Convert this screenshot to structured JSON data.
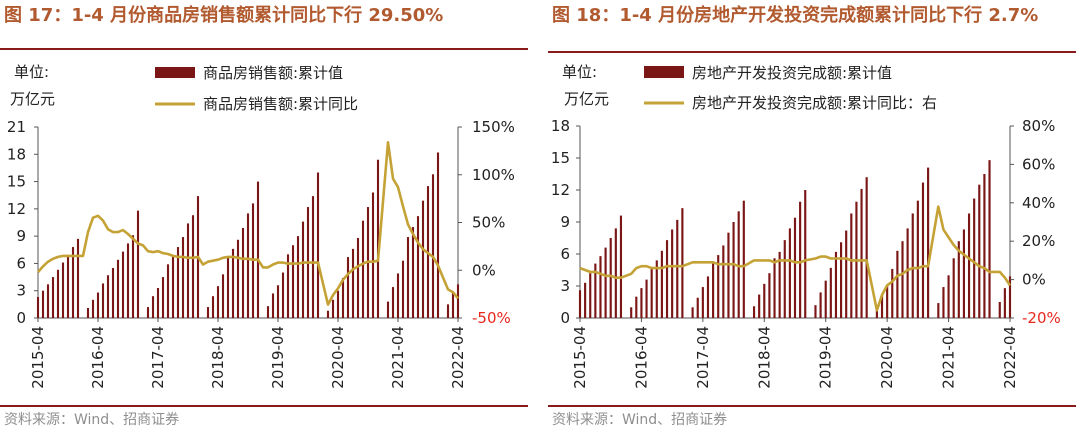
{
  "charts": [
    {
      "title": "图 17：1-4 月份商品房销售额累计同比下行 29.50%",
      "unit_line1": "单位:",
      "unit_line2": "万亿元",
      "source": "资料来源：Wind、招商证券",
      "colors": {
        "bar": "#7b1616",
        "line": "#c5a235",
        "title": "#b25a2f",
        "negative_tick": "#e8281f"
      },
      "chart_data": {
        "type": "bar+line",
        "x_tick_labels": [
          "2015-04",
          "2016-04",
          "2017-04",
          "2018-04",
          "2019-04",
          "2020-04",
          "2021-04",
          "2022-04"
        ],
        "months": [
          "2015-04",
          "2015-05",
          "2015-06",
          "2015-07",
          "2015-08",
          "2015-09",
          "2015-10",
          "2015-11",
          "2015-12",
          "2016-01",
          "2016-02",
          "2016-03",
          "2016-04",
          "2016-05",
          "2016-06",
          "2016-07",
          "2016-08",
          "2016-09",
          "2016-10",
          "2016-11",
          "2016-12",
          "2017-01",
          "2017-02",
          "2017-03",
          "2017-04",
          "2017-05",
          "2017-06",
          "2017-07",
          "2017-08",
          "2017-09",
          "2017-10",
          "2017-11",
          "2017-12",
          "2018-01",
          "2018-02",
          "2018-03",
          "2018-04",
          "2018-05",
          "2018-06",
          "2018-07",
          "2018-08",
          "2018-09",
          "2018-10",
          "2018-11",
          "2018-12",
          "2019-01",
          "2019-02",
          "2019-03",
          "2019-04",
          "2019-05",
          "2019-06",
          "2019-07",
          "2019-08",
          "2019-09",
          "2019-10",
          "2019-11",
          "2019-12",
          "2020-01",
          "2020-02",
          "2020-03",
          "2020-04",
          "2020-05",
          "2020-06",
          "2020-07",
          "2020-08",
          "2020-09",
          "2020-10",
          "2020-11",
          "2020-12",
          "2021-01",
          "2021-02",
          "2021-03",
          "2021-04",
          "2021-05",
          "2021-06",
          "2021-07",
          "2021-08",
          "2021-09",
          "2021-10",
          "2021-11",
          "2021-12",
          "2022-01",
          "2022-02",
          "2022-03",
          "2022-04"
        ],
        "series": [
          {
            "name": "商品房销售额:累计值",
            "type": "bar",
            "axis": "left",
            "values": [
              2.3,
              3.0,
              3.7,
              4.5,
              5.3,
              6.1,
              6.9,
              7.8,
              8.7,
              null,
              1.1,
              2.0,
              2.8,
              3.8,
              4.7,
              5.5,
              6.4,
              7.3,
              8.2,
              9.1,
              11.8,
              null,
              1.2,
              2.4,
              3.3,
              4.5,
              5.9,
              6.7,
              7.8,
              8.9,
              10.4,
              11.3,
              13.4,
              null,
              1.2,
              2.4,
              3.5,
              4.8,
              6.7,
              7.6,
              8.6,
              9.9,
              11.5,
              12.6,
              15.0,
              null,
              1.3,
              2.7,
              3.6,
              5.0,
              7.0,
              8.0,
              9.0,
              10.6,
              12.2,
              13.4,
              16.0,
              null,
              0.8,
              2.0,
              3.0,
              4.4,
              6.7,
              7.6,
              8.8,
              10.7,
              12.2,
              13.8,
              17.4,
              null,
              1.8,
              3.4,
              4.9,
              6.3,
              8.9,
              10.0,
              11.2,
              12.9,
              14.5,
              15.8,
              18.2,
              null,
              1.5,
              2.9,
              3.7
            ],
            "color": "#7b1616"
          },
          {
            "name": "商品房销售额:累计同比",
            "type": "line",
            "axis": "right",
            "values": [
              -2,
              4,
              9,
              12,
              14,
              15,
              15,
              15,
              15,
              15,
              40,
              55,
              57,
              52,
              43,
              40,
              40,
              42,
              38,
              33,
              28,
              26,
              20,
              19,
              20,
              18,
              17,
              15,
              14,
              14,
              13,
              13,
              14,
              6,
              9,
              10,
              11,
              13,
              14,
              14,
              13,
              12,
              12,
              11,
              11,
              3,
              3,
              6,
              8,
              8,
              7,
              7,
              7,
              8,
              8,
              8,
              8,
              null,
              -36,
              -26,
              -19,
              -10,
              -4,
              1,
              4,
              7,
              9,
              9,
              10,
              null,
              134,
              96,
              87,
              67,
              48,
              38,
              29,
              22,
              18,
              14,
              5,
              null,
              -20,
              -23,
              -29.5
            ]
          }
        ],
        "left_axis": {
          "range": [
            0,
            21
          ],
          "ticks": [
            "0",
            "3",
            "6",
            "9",
            "12",
            "15",
            "18",
            "21"
          ]
        },
        "right_axis": {
          "range": [
            -50,
            150
          ],
          "ticks": [
            "-50%",
            "0%",
            "50%",
            "100%",
            "150%"
          ],
          "negative_color": "#e8281f"
        }
      }
    },
    {
      "title": "图 18：1-4 月份房地产开发投资完成额累计同比下行 2.7%",
      "unit_line1": "单位:",
      "unit_line2": "万亿元",
      "source": "资料来源：Wind、招商证券",
      "colors": {
        "bar": "#7b1616",
        "line": "#c5a235",
        "title": "#b25a2f",
        "negative_tick": "#e8281f"
      },
      "chart_data": {
        "type": "bar+line",
        "x_tick_labels": [
          "2015-04",
          "2016-04",
          "2017-04",
          "2018-04",
          "2019-04",
          "2020-04",
          "2021-04",
          "2022-04"
        ],
        "months": [
          "2015-04",
          "2015-05",
          "2015-06",
          "2015-07",
          "2015-08",
          "2015-09",
          "2015-10",
          "2015-11",
          "2015-12",
          "2016-01",
          "2016-02",
          "2016-03",
          "2016-04",
          "2016-05",
          "2016-06",
          "2016-07",
          "2016-08",
          "2016-09",
          "2016-10",
          "2016-11",
          "2016-12",
          "2017-01",
          "2017-02",
          "2017-03",
          "2017-04",
          "2017-05",
          "2017-06",
          "2017-07",
          "2017-08",
          "2017-09",
          "2017-10",
          "2017-11",
          "2017-12",
          "2018-01",
          "2018-02",
          "2018-03",
          "2018-04",
          "2018-05",
          "2018-06",
          "2018-07",
          "2018-08",
          "2018-09",
          "2018-10",
          "2018-11",
          "2018-12",
          "2019-01",
          "2019-02",
          "2019-03",
          "2019-04",
          "2019-05",
          "2019-06",
          "2019-07",
          "2019-08",
          "2019-09",
          "2019-10",
          "2019-11",
          "2019-12",
          "2020-01",
          "2020-02",
          "2020-03",
          "2020-04",
          "2020-05",
          "2020-06",
          "2020-07",
          "2020-08",
          "2020-09",
          "2020-10",
          "2020-11",
          "2020-12",
          "2021-01",
          "2021-02",
          "2021-03",
          "2021-04",
          "2021-05",
          "2021-06",
          "2021-07",
          "2021-08",
          "2021-09",
          "2021-10",
          "2021-11",
          "2021-12",
          "2022-01",
          "2022-02",
          "2022-03",
          "2022-04"
        ],
        "series": [
          {
            "name": "房地产开发投资完成额:累计值",
            "type": "bar",
            "axis": "left",
            "values": [
              2.6,
              3.3,
              4.2,
              5.1,
              5.8,
              6.6,
              7.5,
              8.4,
              9.6,
              null,
              1.0,
              2.0,
              2.8,
              3.6,
              4.6,
              5.4,
              6.3,
              7.3,
              8.3,
              9.2,
              10.3,
              null,
              1.0,
              1.9,
              2.9,
              3.9,
              5.1,
              5.9,
              6.8,
              8.0,
              9.0,
              10.0,
              11.0,
              null,
              1.1,
              2.2,
              3.2,
              4.2,
              5.6,
              6.2,
              7.3,
              8.4,
              9.4,
              10.9,
              12.0,
              null,
              1.2,
              2.4,
              3.5,
              4.7,
              6.2,
              7.1,
              8.2,
              9.8,
              10.9,
              12.1,
              13.2,
              null,
              1.0,
              2.2,
              3.1,
              4.6,
              6.3,
              7.2,
              8.4,
              9.8,
              11.0,
              12.7,
              14.1,
              null,
              1.4,
              2.9,
              4.0,
              5.6,
              7.2,
              8.3,
              9.8,
              11.2,
              12.5,
              13.5,
              14.8,
              null,
              1.5,
              2.8,
              3.9
            ],
            "color": "#7b1616"
          },
          {
            "name": "房地产开发投资完成额:累计同比：右",
            "type": "line",
            "axis": "right",
            "values": [
              6,
              5,
              4,
              4,
              3,
              2,
              2,
              1,
              1,
              null,
              3,
              6,
              7,
              7,
              6,
              6,
              6,
              7,
              7,
              7,
              7,
              null,
              9,
              9,
              9,
              9,
              9,
              8,
              8,
              8,
              8,
              7,
              7,
              null,
              10,
              10,
              10,
              10,
              9,
              10,
              10,
              10,
              9,
              9,
              10,
              null,
              11,
              12,
              12,
              11,
              11,
              11,
              11,
              10,
              10,
              10,
              10,
              null,
              -16,
              -8,
              -3,
              -1,
              2,
              3,
              5,
              6,
              6,
              7,
              7,
              null,
              38,
              26,
              22,
              18,
              15,
              13,
              11,
              9,
              7,
              6,
              4,
              null,
              4,
              1,
              -3
            ]
          }
        ],
        "left_axis": {
          "range": [
            0,
            18
          ],
          "ticks": [
            "0",
            "3",
            "6",
            "9",
            "12",
            "15",
            "18"
          ]
        },
        "right_axis": {
          "range": [
            -20,
            80
          ],
          "ticks": [
            "-20%",
            "0%",
            "20%",
            "40%",
            "60%",
            "80%"
          ],
          "negative_color": "#e8281f"
        }
      }
    }
  ]
}
